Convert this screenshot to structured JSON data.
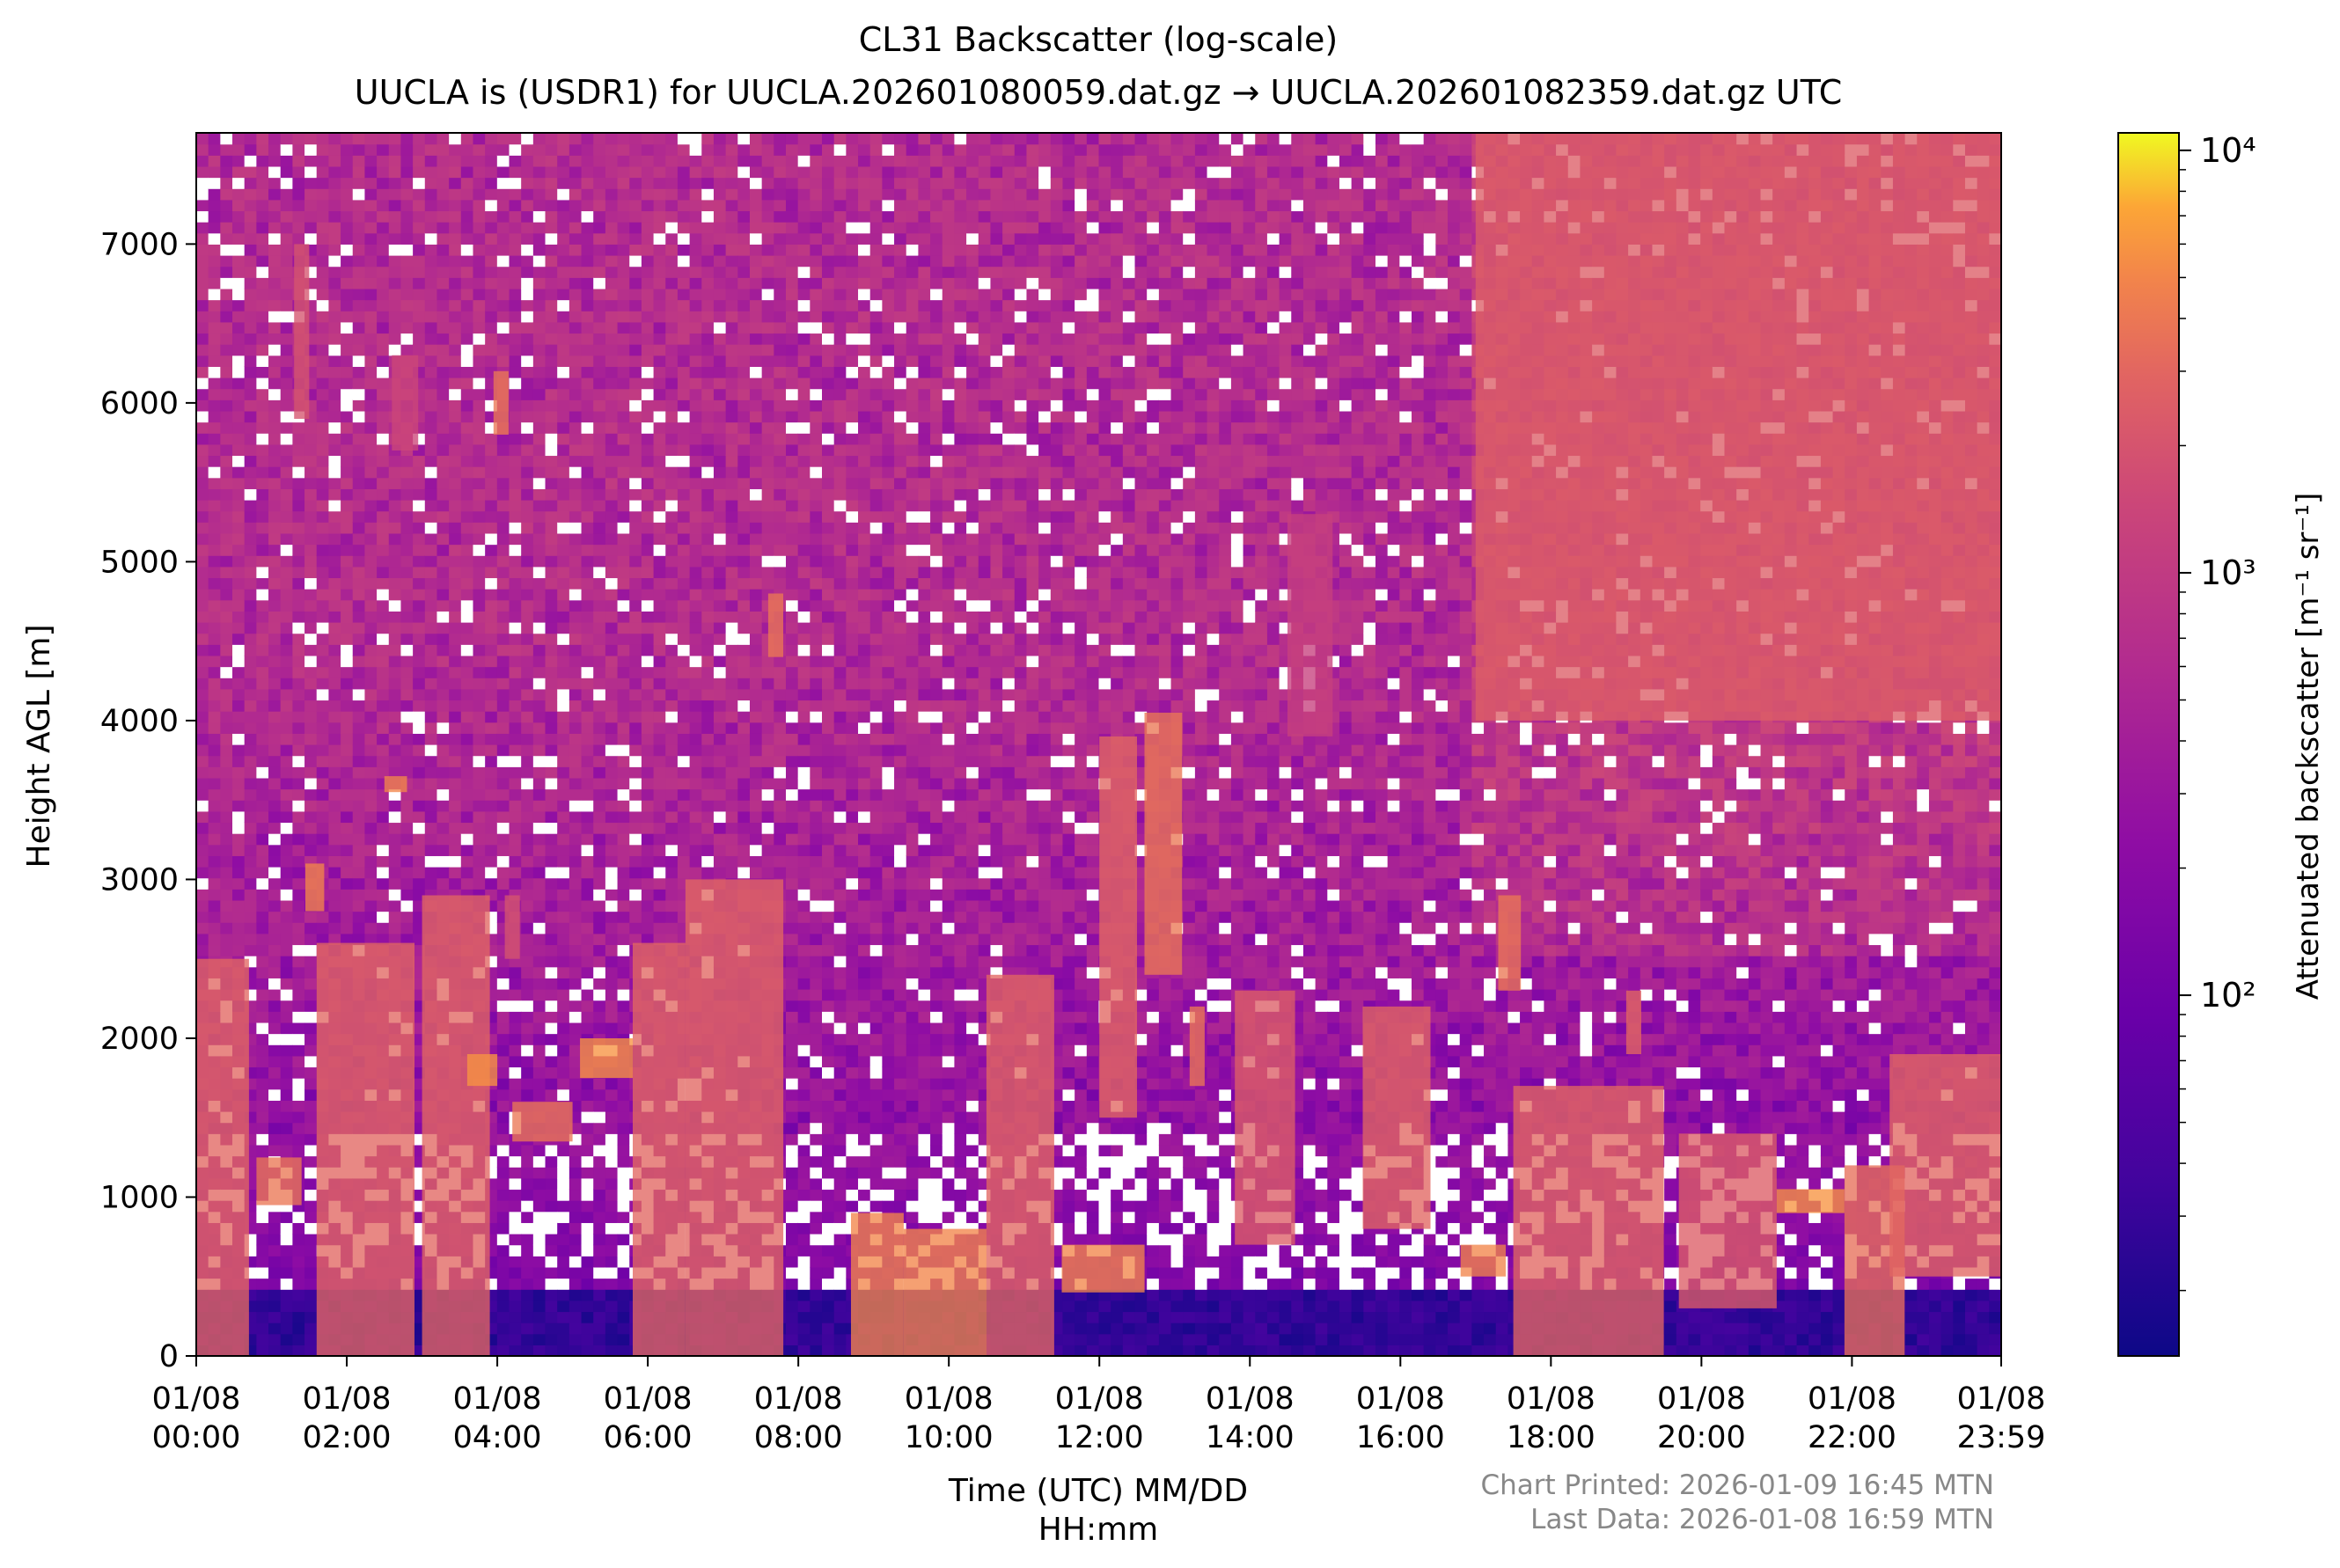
{
  "chart_data": {
    "type": "heatmap",
    "title": "CL31 Backscatter (log-scale)",
    "subtitle": "UUCLA is (USDR1) for UUCLA.202601080059.dat.gz → UUCLA.202601082359.dat.gz UTC",
    "xlabel_line1": "Time (UTC) MM/DD",
    "xlabel_line2": "HH:mm",
    "ylabel": "Height AGL [m]",
    "x_ticks": [
      {
        "h": 0,
        "date": "01/08",
        "time": "00:00"
      },
      {
        "h": 2,
        "date": "01/08",
        "time": "02:00"
      },
      {
        "h": 4,
        "date": "01/08",
        "time": "04:00"
      },
      {
        "h": 6,
        "date": "01/08",
        "time": "06:00"
      },
      {
        "h": 8,
        "date": "01/08",
        "time": "08:00"
      },
      {
        "h": 10,
        "date": "01/08",
        "time": "10:00"
      },
      {
        "h": 12,
        "date": "01/08",
        "time": "12:00"
      },
      {
        "h": 14,
        "date": "01/08",
        "time": "14:00"
      },
      {
        "h": 16,
        "date": "01/08",
        "time": "16:00"
      },
      {
        "h": 18,
        "date": "01/08",
        "time": "18:00"
      },
      {
        "h": 20,
        "date": "01/08",
        "time": "20:00"
      },
      {
        "h": 22,
        "date": "01/08",
        "time": "22:00"
      },
      {
        "h": 23.983,
        "date": "01/08",
        "time": "23:59"
      }
    ],
    "y_ticks": [
      0,
      1000,
      2000,
      3000,
      4000,
      5000,
      6000,
      7000
    ],
    "xlim_hours": [
      0,
      23.983
    ],
    "ylim": [
      0,
      7700
    ],
    "colorbar": {
      "label": "Attenuated backscatter [m⁻¹ sr⁻¹]",
      "scale": "log",
      "min": 14,
      "max": 11000,
      "ticks": [
        {
          "v": 100,
          "label": "10²"
        },
        {
          "v": 1000,
          "label": "10³"
        },
        {
          "v": 10000,
          "label": "10⁴"
        }
      ],
      "colormap": "plasma"
    },
    "features": [
      {
        "t0": 0.0,
        "t1": 0.7,
        "h0": 0,
        "h1": 2500,
        "v": 3000
      },
      {
        "t0": 0.8,
        "t1": 1.4,
        "h0": 950,
        "h1": 1250,
        "v": 4000
      },
      {
        "t0": 1.3,
        "t1": 1.5,
        "h0": 5900,
        "h1": 7000,
        "v": 2000
      },
      {
        "t0": 1.45,
        "t1": 1.7,
        "h0": 2800,
        "h1": 3100,
        "v": 5000
      },
      {
        "t0": 1.6,
        "t1": 2.9,
        "h0": 0,
        "h1": 2600,
        "v": 3000
      },
      {
        "t0": 2.5,
        "t1": 2.8,
        "h0": 3550,
        "h1": 3650,
        "v": 5000
      },
      {
        "t0": 2.6,
        "t1": 2.95,
        "h0": 5700,
        "h1": 6300,
        "v": 1500
      },
      {
        "t0": 3.0,
        "t1": 3.9,
        "h0": 0,
        "h1": 2900,
        "v": 3000
      },
      {
        "t0": 3.6,
        "t1": 4.0,
        "h0": 1700,
        "h1": 1900,
        "v": 6000
      },
      {
        "t0": 3.95,
        "t1": 4.15,
        "h0": 5800,
        "h1": 6200,
        "v": 4000
      },
      {
        "t0": 4.1,
        "t1": 4.3,
        "h0": 2500,
        "h1": 2900,
        "v": 2000
      },
      {
        "t0": 4.2,
        "t1": 5.0,
        "h0": 1350,
        "h1": 1600,
        "v": 4000
      },
      {
        "t0": 5.1,
        "t1": 5.8,
        "h0": 1750,
        "h1": 2000,
        "v": 6000
      },
      {
        "t0": 5.8,
        "t1": 6.5,
        "h0": 0,
        "h1": 2600,
        "v": 3000
      },
      {
        "t0": 6.5,
        "t1": 7.8,
        "h0": 0,
        "h1": 3000,
        "v": 3000
      },
      {
        "t0": 7.6,
        "t1": 7.8,
        "h0": 4400,
        "h1": 4800,
        "v": 4000
      },
      {
        "t0": 8.7,
        "t1": 9.4,
        "h0": 0,
        "h1": 900,
        "v": 5000
      },
      {
        "t0": 9.4,
        "t1": 10.5,
        "h0": 0,
        "h1": 800,
        "v": 5000
      },
      {
        "t0": 10.5,
        "t1": 11.4,
        "h0": 0,
        "h1": 2400,
        "v": 3000
      },
      {
        "t0": 11.5,
        "t1": 12.6,
        "h0": 400,
        "h1": 700,
        "v": 5000
      },
      {
        "t0": 12.0,
        "t1": 12.5,
        "h0": 1500,
        "h1": 3900,
        "v": 3000
      },
      {
        "t0": 12.6,
        "t1": 13.1,
        "h0": 2400,
        "h1": 4050,
        "v": 4000
      },
      {
        "t0": 13.2,
        "t1": 13.4,
        "h0": 1700,
        "h1": 2200,
        "v": 4000
      },
      {
        "t0": 13.8,
        "t1": 14.6,
        "h0": 700,
        "h1": 2300,
        "v": 2500
      },
      {
        "t0": 14.5,
        "t1": 15.1,
        "h0": 3900,
        "h1": 5300,
        "v": 1200
      },
      {
        "t0": 15.5,
        "t1": 16.4,
        "h0": 800,
        "h1": 2200,
        "v": 3000
      },
      {
        "t0": 16.8,
        "t1": 17.4,
        "h0": 500,
        "h1": 700,
        "v": 5000
      },
      {
        "t0": 17.3,
        "t1": 17.6,
        "h0": 2300,
        "h1": 2900,
        "v": 4000
      },
      {
        "t0": 17.5,
        "t1": 19.5,
        "h0": 0,
        "h1": 1700,
        "v": 3000
      },
      {
        "t0": 19.0,
        "t1": 19.2,
        "h0": 1900,
        "h1": 2300,
        "v": 3000
      },
      {
        "t0": 19.7,
        "t1": 21.0,
        "h0": 300,
        "h1": 1400,
        "v": 2500
      },
      {
        "t0": 21.0,
        "t1": 21.9,
        "h0": 900,
        "h1": 1050,
        "v": 6000
      },
      {
        "t0": 21.9,
        "t1": 22.7,
        "h0": 0,
        "h1": 1200,
        "v": 3500
      },
      {
        "t0": 22.5,
        "t1": 23.98,
        "h0": 500,
        "h1": 1900,
        "v": 3000
      },
      {
        "t0": 17.0,
        "t1": 23.98,
        "h0": 4000,
        "h1": 7700,
        "v": 2500
      }
    ]
  },
  "footer": {
    "printed": "Chart Printed: 2026-01-09 16:45 MTN",
    "last_data": "Last Data: 2026-01-08 16:59 MTN"
  }
}
